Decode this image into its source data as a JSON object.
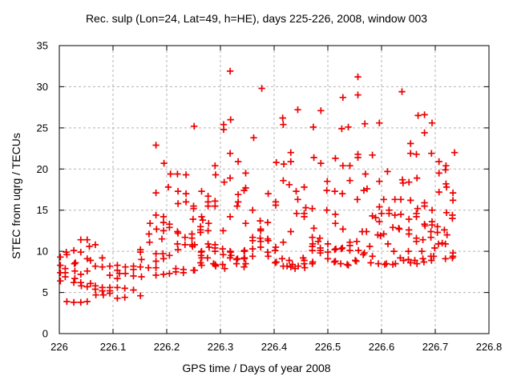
{
  "chart_data": {
    "type": "scatter",
    "title": "Rec. sulp (Lon=24, Lat=49, h=HE), days 225-226, 2008, window 003",
    "xlabel": "GPS time / Days of year 2008",
    "ylabel": "STEC from uqrg / TECUs",
    "xlim": [
      226,
      226.8
    ],
    "ylim": [
      0,
      35
    ],
    "xtick_values": [
      226,
      226.1,
      226.2,
      226.3,
      226.4,
      226.5,
      226.6,
      226.7,
      226.8
    ],
    "xtick_labels": [
      "226",
      "226.1",
      "226.2",
      "226.3",
      "226.4",
      "226.5",
      "226.6",
      "226.7",
      "226.8"
    ],
    "ytick_values": [
      0,
      5,
      10,
      15,
      20,
      25,
      30,
      35
    ],
    "ytick_labels": [
      "0",
      "5",
      "10",
      "15",
      "20",
      "25",
      "30",
      "35"
    ],
    "grid": true,
    "legend": null,
    "marker": {
      "shape": "plus",
      "color": "#ee0000",
      "size": 9
    },
    "colors": {
      "axis": "#000000",
      "grid": "#b3b3b3",
      "background": "#ffffff"
    },
    "points": [
      [
        226.002,
        9.3
      ],
      [
        226.002,
        8.3
      ],
      [
        226.002,
        7.4
      ],
      [
        226.002,
        6.4
      ],
      [
        226.011,
        7.9
      ],
      [
        226.011,
        7.4
      ],
      [
        226.011,
        6.9
      ],
      [
        226.013,
        9.9
      ],
      [
        226.014,
        9.6
      ],
      [
        226.014,
        3.9
      ],
      [
        226.027,
        10.1
      ],
      [
        226.028,
        8.5
      ],
      [
        226.029,
        7.6
      ],
      [
        226.029,
        6.7
      ],
      [
        226.027,
        6.2
      ],
      [
        226.027,
        3.8
      ],
      [
        226.03,
        8.6
      ],
      [
        226.04,
        11.4
      ],
      [
        226.04,
        9.9
      ],
      [
        226.04,
        7.2
      ],
      [
        226.04,
        6.2
      ],
      [
        226.041,
        5.8
      ],
      [
        226.04,
        3.8
      ],
      [
        226.052,
        11.4
      ],
      [
        226.052,
        9.1
      ],
      [
        226.052,
        7.6
      ],
      [
        226.052,
        5.7
      ],
      [
        226.052,
        3.9
      ],
      [
        226.056,
        10.6
      ],
      [
        226.058,
        8.9
      ],
      [
        226.058,
        6.1
      ],
      [
        226.067,
        10.8
      ],
      [
        226.067,
        8.2
      ],
      [
        226.067,
        5.8
      ],
      [
        226.067,
        5.4
      ],
      [
        226.068,
        4.7
      ],
      [
        226.08,
        9.2
      ],
      [
        226.08,
        8.1
      ],
      [
        226.08,
        5.6
      ],
      [
        226.08,
        5.2
      ],
      [
        226.082,
        4.7
      ],
      [
        226.094,
        8.2
      ],
      [
        226.094,
        7.1
      ],
      [
        226.094,
        5.6
      ],
      [
        226.094,
        5.2
      ],
      [
        226.094,
        4.9
      ],
      [
        226.108,
        8.3
      ],
      [
        226.108,
        7.7
      ],
      [
        226.108,
        6.7
      ],
      [
        226.108,
        5.6
      ],
      [
        226.108,
        4.3
      ],
      [
        226.112,
        7.3
      ],
      [
        226.123,
        8.1
      ],
      [
        226.123,
        7.3
      ],
      [
        226.122,
        5.5
      ],
      [
        226.122,
        4.4
      ],
      [
        226.138,
        8.2
      ],
      [
        226.138,
        7.8
      ],
      [
        226.138,
        7.0
      ],
      [
        226.138,
        5.3
      ],
      [
        226.151,
        10.2
      ],
      [
        226.151,
        9.9
      ],
      [
        226.153,
        9.0
      ],
      [
        226.151,
        8.1
      ],
      [
        226.153,
        6.9
      ],
      [
        226.151,
        4.6
      ],
      [
        226.167,
        12.1
      ],
      [
        226.169,
        13.4
      ],
      [
        226.168,
        11.1
      ],
      [
        226.166,
        8.0
      ],
      [
        226.18,
        17.1
      ],
      [
        226.18,
        14.4
      ],
      [
        226.181,
        12.7
      ],
      [
        226.18,
        9.7
      ],
      [
        226.18,
        8.8
      ],
      [
        226.18,
        8.0
      ],
      [
        226.18,
        7.1
      ],
      [
        226.18,
        22.9
      ],
      [
        226.194,
        14.2
      ],
      [
        226.194,
        13.5
      ],
      [
        226.194,
        12.5
      ],
      [
        226.191,
        11.5
      ],
      [
        226.193,
        9.7
      ],
      [
        226.194,
        9.1
      ],
      [
        226.194,
        7.2
      ],
      [
        226.195,
        20.7
      ],
      [
        226.203,
        17.8
      ],
      [
        226.205,
        13.3
      ],
      [
        226.205,
        12.9
      ],
      [
        226.205,
        9.5
      ],
      [
        226.205,
        7.3
      ],
      [
        226.207,
        19.4
      ],
      [
        226.217,
        7.9
      ],
      [
        226.217,
        7.5
      ],
      [
        226.22,
        19.4
      ],
      [
        226.221,
        17.3
      ],
      [
        226.221,
        15.8
      ],
      [
        226.22,
        12.4
      ],
      [
        226.221,
        12.2
      ],
      [
        226.22,
        10.9
      ],
      [
        226.221,
        10.2
      ],
      [
        226.231,
        7.8
      ],
      [
        226.231,
        7.4
      ],
      [
        226.234,
        11.7
      ],
      [
        226.234,
        10.8
      ],
      [
        226.236,
        19.3
      ],
      [
        226.236,
        17.0
      ],
      [
        226.236,
        16.0
      ],
      [
        226.247,
        12.1
      ],
      [
        226.247,
        11.6
      ],
      [
        226.247,
        10.8
      ],
      [
        226.248,
        10.6
      ],
      [
        226.249,
        13.9
      ],
      [
        226.25,
        15.5
      ],
      [
        226.25,
        15.2
      ],
      [
        226.25,
        7.7
      ],
      [
        226.251,
        25.2
      ],
      [
        226.252,
        10.8
      ],
      [
        226.252,
        7.7
      ],
      [
        226.263,
        13.0
      ],
      [
        226.263,
        12.6
      ],
      [
        226.263,
        12.3
      ],
      [
        226.263,
        8.6
      ],
      [
        226.264,
        9.9
      ],
      [
        226.264,
        9.5
      ],
      [
        226.265,
        17.3
      ],
      [
        226.265,
        14.2
      ],
      [
        226.265,
        10.0
      ],
      [
        226.265,
        9.2
      ],
      [
        226.265,
        8.3
      ],
      [
        226.267,
        13.8
      ],
      [
        226.276,
        9.2
      ],
      [
        226.277,
        16.7
      ],
      [
        226.277,
        16.0
      ],
      [
        226.277,
        15.5
      ],
      [
        226.277,
        12.5
      ],
      [
        226.277,
        10.9
      ],
      [
        226.278,
        13.4
      ],
      [
        226.279,
        10.5
      ],
      [
        226.287,
        8.5
      ],
      [
        226.29,
        20.4
      ],
      [
        226.291,
        19.3
      ],
      [
        226.29,
        16.1
      ],
      [
        226.29,
        15.5
      ],
      [
        226.29,
        10.8
      ],
      [
        226.29,
        10.4
      ],
      [
        226.29,
        10.0
      ],
      [
        226.29,
        8.4
      ],
      [
        226.291,
        8.3
      ],
      [
        226.291,
        8.2
      ],
      [
        226.304,
        10.3
      ],
      [
        226.304,
        8.4
      ],
      [
        226.305,
        12.5
      ],
      [
        226.305,
        9.6
      ],
      [
        226.306,
        25.4
      ],
      [
        226.306,
        24.8
      ],
      [
        226.307,
        18.4
      ],
      [
        226.308,
        7.9
      ],
      [
        226.318,
        31.9
      ],
      [
        226.318,
        21.9
      ],
      [
        226.318,
        18.9
      ],
      [
        226.318,
        14.2
      ],
      [
        226.318,
        10.0
      ],
      [
        226.318,
        9.2
      ],
      [
        226.319,
        26.0
      ],
      [
        226.319,
        9.9
      ],
      [
        226.32,
        9.5
      ],
      [
        226.33,
        9.0
      ],
      [
        226.33,
        8.5
      ],
      [
        226.331,
        15.5
      ],
      [
        226.332,
        9.1
      ],
      [
        226.333,
        20.9
      ],
      [
        226.333,
        16.9
      ],
      [
        226.333,
        16.0
      ],
      [
        226.344,
        17.4
      ],
      [
        226.344,
        10.0
      ],
      [
        226.344,
        9.1
      ],
      [
        226.344,
        8.1
      ],
      [
        226.345,
        10.1
      ],
      [
        226.345,
        9.2
      ],
      [
        226.347,
        19.5
      ],
      [
        226.347,
        17.7
      ],
      [
        226.347,
        13.4
      ],
      [
        226.347,
        8.5
      ],
      [
        226.36,
        15.0
      ],
      [
        226.36,
        11.7
      ],
      [
        226.36,
        11.3
      ],
      [
        226.36,
        10.3
      ],
      [
        226.36,
        9.4
      ],
      [
        226.362,
        23.8
      ],
      [
        226.374,
        13.7
      ],
      [
        226.374,
        11.6
      ],
      [
        226.375,
        12.7
      ],
      [
        226.375,
        12.5
      ],
      [
        226.375,
        11.2
      ],
      [
        226.375,
        10.5
      ],
      [
        226.377,
        29.8
      ],
      [
        226.388,
        13.5
      ],
      [
        226.388,
        11.5
      ],
      [
        226.388,
        9.9
      ],
      [
        226.389,
        17.0
      ],
      [
        226.389,
        11.3
      ],
      [
        226.389,
        9.4
      ],
      [
        226.402,
        10.1
      ],
      [
        226.402,
        8.6
      ],
      [
        226.403,
        16.0
      ],
      [
        226.403,
        15.6
      ],
      [
        226.403,
        10.5
      ],
      [
        226.404,
        20.8
      ],
      [
        226.404,
        8.7
      ],
      [
        226.415,
        9.1
      ],
      [
        226.416,
        26.2
      ],
      [
        226.417,
        25.4
      ],
      [
        226.417,
        18.6
      ],
      [
        226.417,
        11.1
      ],
      [
        226.417,
        8.2
      ],
      [
        226.418,
        20.6
      ],
      [
        226.424,
        8.2
      ],
      [
        226.428,
        18.1
      ],
      [
        226.428,
        8.9
      ],
      [
        226.431,
        22.0
      ],
      [
        226.431,
        20.9
      ],
      [
        226.431,
        12.4
      ],
      [
        226.431,
        8.1
      ],
      [
        226.434,
        8.4
      ],
      [
        226.439,
        7.9
      ],
      [
        226.441,
        17.3
      ],
      [
        226.442,
        14.6
      ],
      [
        226.444,
        27.2
      ],
      [
        226.444,
        16.3
      ],
      [
        226.445,
        8.2
      ],
      [
        226.454,
        9.2
      ],
      [
        226.456,
        17.8
      ],
      [
        226.456,
        14.6
      ],
      [
        226.456,
        14.2
      ],
      [
        226.456,
        8.9
      ],
      [
        226.456,
        8.5
      ],
      [
        226.457,
        8.0
      ],
      [
        226.459,
        15.3
      ],
      [
        226.471,
        15.2
      ],
      [
        226.471,
        11.7
      ],
      [
        226.471,
        10.6
      ],
      [
        226.471,
        10.1
      ],
      [
        226.471,
        8.5
      ],
      [
        226.472,
        8.7
      ],
      [
        226.472,
        10.9
      ],
      [
        226.473,
        25.1
      ],
      [
        226.474,
        21.4
      ],
      [
        226.474,
        12.8
      ],
      [
        226.482,
        11.2
      ],
      [
        226.485,
        11.6
      ],
      [
        226.486,
        10.1
      ],
      [
        226.486,
        9.8
      ],
      [
        226.486,
        10.4
      ],
      [
        226.487,
        27.1
      ],
      [
        226.487,
        20.7
      ],
      [
        226.498,
        17.4
      ],
      [
        226.498,
        15.0
      ],
      [
        226.499,
        18.5
      ],
      [
        226.5,
        10.9
      ],
      [
        226.5,
        9.9
      ],
      [
        226.5,
        9.1
      ],
      [
        226.512,
        8.7
      ],
      [
        226.513,
        17.3
      ],
      [
        226.513,
        10.2
      ],
      [
        226.514,
        21.3
      ],
      [
        226.514,
        14.5
      ],
      [
        226.514,
        13.4
      ],
      [
        226.514,
        8.8
      ],
      [
        226.515,
        10.3
      ],
      [
        226.524,
        8.5
      ],
      [
        226.525,
        10.3
      ],
      [
        226.526,
        24.9
      ],
      [
        226.527,
        10.4
      ],
      [
        226.527,
        17.0
      ],
      [
        226.528,
        28.7
      ],
      [
        226.528,
        20.4
      ],
      [
        226.528,
        12.7
      ],
      [
        226.536,
        8.4
      ],
      [
        226.538,
        25.1
      ],
      [
        226.538,
        8.3
      ],
      [
        226.541,
        20.4
      ],
      [
        226.541,
        18.6
      ],
      [
        226.541,
        11.1
      ],
      [
        226.541,
        10.7
      ],
      [
        226.541,
        10.1
      ],
      [
        226.551,
        8.9
      ],
      [
        226.553,
        8.8
      ],
      [
        226.554,
        11.2
      ],
      [
        226.555,
        16.3
      ],
      [
        226.556,
        31.2
      ],
      [
        226.556,
        29.0
      ],
      [
        226.556,
        21.8
      ],
      [
        226.556,
        21.4
      ],
      [
        226.557,
        10.1
      ],
      [
        226.564,
        12.4
      ],
      [
        226.566,
        9.6
      ],
      [
        226.567,
        17.4
      ],
      [
        226.568,
        9.8
      ],
      [
        226.569,
        25.5
      ],
      [
        226.57,
        19.4
      ],
      [
        226.572,
        12.4
      ],
      [
        226.573,
        17.6
      ],
      [
        226.578,
        10.6
      ],
      [
        226.58,
        8.6
      ],
      [
        226.583,
        21.7
      ],
      [
        226.583,
        14.3
      ],
      [
        226.583,
        9.4
      ],
      [
        226.589,
        14.1
      ],
      [
        226.593,
        12.0
      ],
      [
        226.594,
        8.5
      ],
      [
        226.596,
        25.6
      ],
      [
        226.596,
        18.5
      ],
      [
        226.596,
        15.4
      ],
      [
        226.596,
        13.6
      ],
      [
        226.598,
        11.9
      ],
      [
        226.6,
        14.6
      ],
      [
        226.604,
        16.3
      ],
      [
        226.604,
        12.1
      ],
      [
        226.606,
        8.4
      ],
      [
        226.609,
        8.5
      ],
      [
        226.611,
        19.7
      ],
      [
        226.612,
        10.9
      ],
      [
        226.614,
        15.0
      ],
      [
        226.614,
        14.6
      ],
      [
        226.621,
        12.9
      ],
      [
        226.621,
        8.4
      ],
      [
        226.623,
        10.0
      ],
      [
        226.625,
        16.3
      ],
      [
        226.625,
        14.4
      ],
      [
        226.626,
        8.5
      ],
      [
        226.632,
        12.8
      ],
      [
        226.633,
        12.7
      ],
      [
        226.635,
        9.2
      ],
      [
        226.636,
        16.3
      ],
      [
        226.636,
        14.5
      ],
      [
        226.638,
        29.4
      ],
      [
        226.639,
        18.7
      ],
      [
        226.64,
        18.3
      ],
      [
        226.641,
        8.9
      ],
      [
        226.65,
        10.0
      ],
      [
        226.65,
        9.0
      ],
      [
        226.651,
        13.9
      ],
      [
        226.651,
        12.6
      ],
      [
        226.651,
        12.1
      ],
      [
        226.651,
        18.4
      ],
      [
        226.654,
        23.1
      ],
      [
        226.654,
        21.9
      ],
      [
        226.654,
        16.2
      ],
      [
        226.654,
        8.6
      ],
      [
        226.662,
        8.9
      ],
      [
        226.665,
        21.8
      ],
      [
        226.665,
        14.6
      ],
      [
        226.665,
        14.2
      ],
      [
        226.665,
        11.6
      ],
      [
        226.665,
        11.2
      ],
      [
        226.666,
        18.9
      ],
      [
        226.666,
        8.5
      ],
      [
        226.667,
        15.2
      ],
      [
        226.668,
        26.5
      ],
      [
        226.675,
        10.0
      ],
      [
        226.677,
        11.4
      ],
      [
        226.677,
        9.1
      ],
      [
        226.679,
        8.7
      ],
      [
        226.68,
        26.6
      ],
      [
        226.68,
        24.4
      ],
      [
        226.68,
        15.9
      ],
      [
        226.68,
        15.5
      ],
      [
        226.68,
        13.3
      ],
      [
        226.681,
        13.1
      ],
      [
        226.692,
        11.7
      ],
      [
        226.692,
        12.4
      ],
      [
        226.692,
        9.4
      ],
      [
        226.693,
        8.9
      ],
      [
        226.693,
        21.9
      ],
      [
        226.694,
        25.6
      ],
      [
        226.694,
        15.0
      ],
      [
        226.694,
        13.6
      ],
      [
        226.694,
        13.2
      ],
      [
        226.697,
        9.4
      ],
      [
        226.699,
        10.4
      ],
      [
        226.704,
        13.0
      ],
      [
        226.704,
        12.3
      ],
      [
        226.706,
        10.9
      ],
      [
        226.707,
        20.9
      ],
      [
        226.707,
        19.5
      ],
      [
        226.707,
        17.2
      ],
      [
        226.713,
        11.0
      ],
      [
        226.717,
        12.6
      ],
      [
        226.719,
        10.9
      ],
      [
        226.719,
        9.1
      ],
      [
        226.719,
        19.9
      ],
      [
        226.72,
        20.4
      ],
      [
        226.72,
        18.2
      ],
      [
        226.721,
        17.8
      ],
      [
        226.721,
        14.7
      ],
      [
        226.722,
        12.0
      ],
      [
        226.732,
        14.4
      ],
      [
        226.732,
        14.0
      ],
      [
        226.732,
        9.2
      ],
      [
        226.733,
        17.1
      ],
      [
        226.733,
        16.2
      ],
      [
        226.733,
        9.8
      ],
      [
        226.733,
        9.4
      ],
      [
        226.736,
        22.0
      ]
    ]
  }
}
